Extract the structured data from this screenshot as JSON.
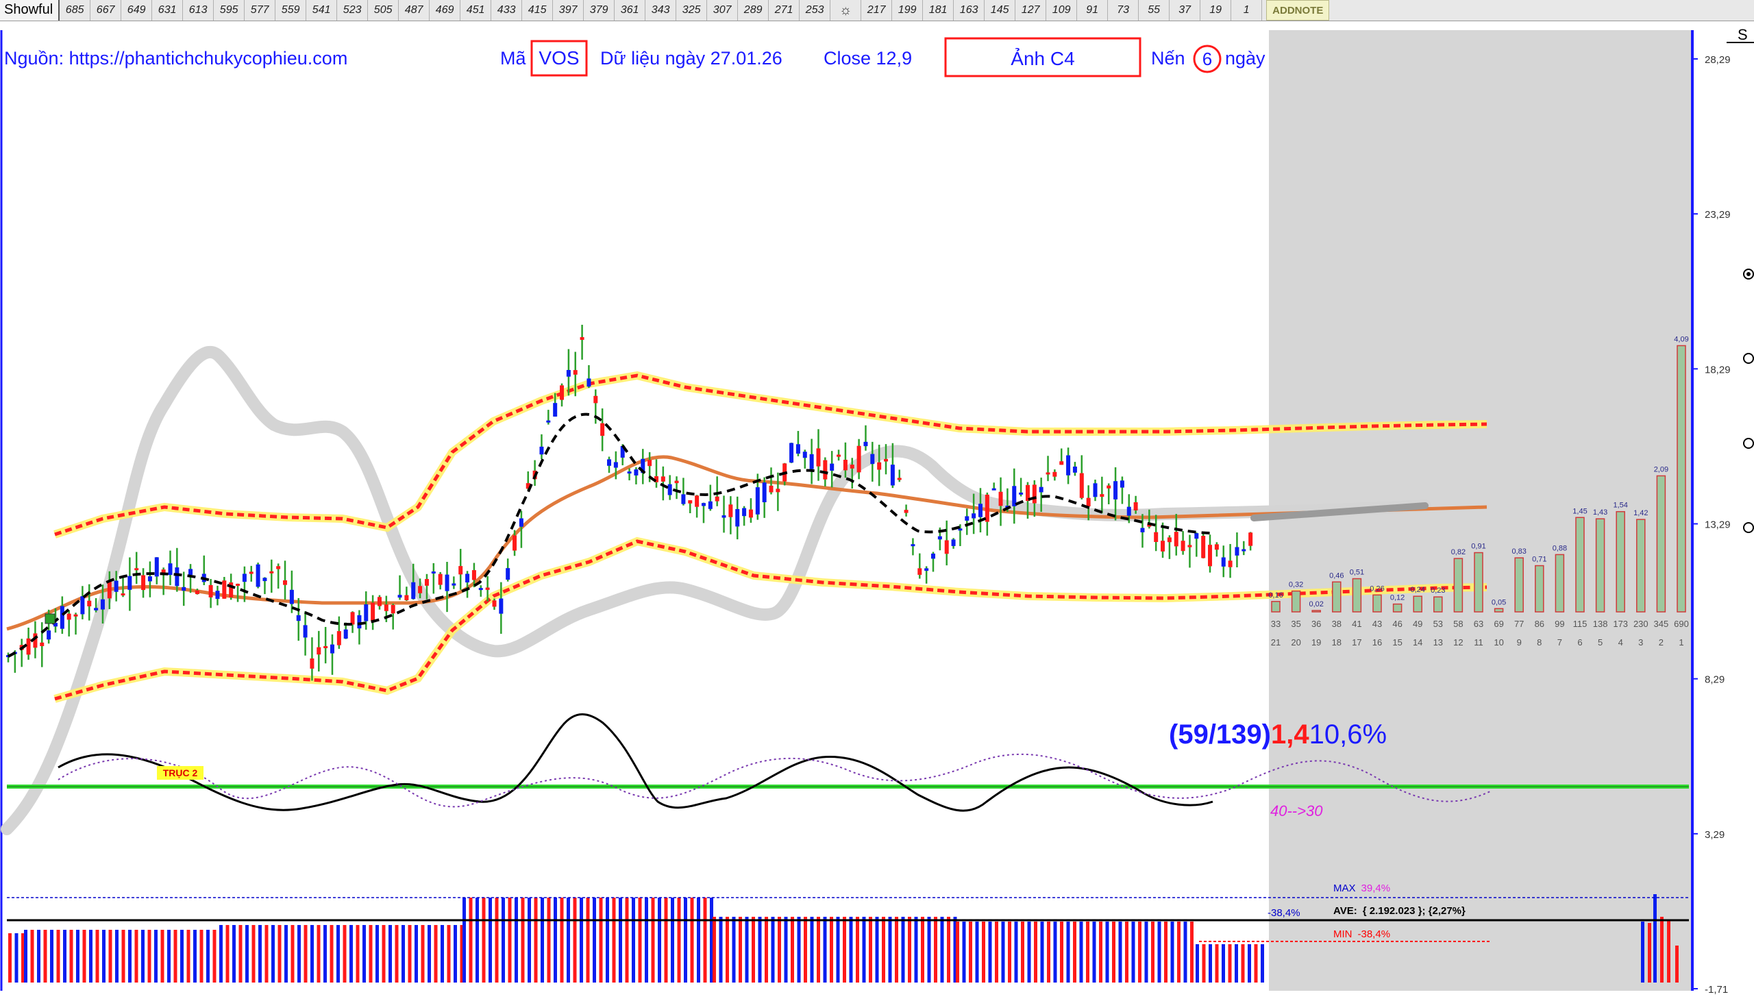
{
  "toolbar": {
    "app_label": "Showful",
    "period_buttons": [
      "685",
      "667",
      "649",
      "631",
      "613",
      "595",
      "577",
      "559",
      "541",
      "523",
      "505",
      "487",
      "469",
      "451",
      "433",
      "415",
      "397",
      "379",
      "361",
      "343",
      "325",
      "307",
      "289",
      "271",
      "253"
    ],
    "period_buttons_after": [
      "217",
      "199",
      "181",
      "163",
      "145",
      "127",
      "109",
      "91",
      "73",
      "55",
      "37",
      "19",
      "1"
    ],
    "addnote_label": "ADDNOTE",
    "settings_icon": "gear-icon"
  },
  "header": {
    "source": "Nguồn: https://phantichchukycophieu.com",
    "ticker_prefix": "Mã",
    "ticker": "VOS",
    "data_date": "Dữ liệu ngày 27.01.26",
    "close": "Close 12,9",
    "image_label": "Ảnh C4",
    "candle_prefix": "Nến",
    "candle_count": "6",
    "candle_suffix": "ngày",
    "corner_letter": "S"
  },
  "stats": {
    "ratio": "(59/139)",
    "value_red": "1,4",
    "value_blue": "10,6%",
    "cycle_note": "40-->30",
    "axis2_label": "TRỤC 2"
  },
  "bottom_panel": {
    "max_label": "MAX",
    "max_value": "39,4%",
    "ave_label": "AVE:",
    "ave_value": "{ 2.192.023 }; {2,27%}",
    "min_label": "MIN",
    "min_value": "-38,4%",
    "left_value": "-38,4%"
  },
  "colors": {
    "up": "#2ca02c",
    "down": "#ff1a1a",
    "blue": "#0a1ef0",
    "orange": "#e07a3c",
    "band": "#ff2020",
    "band_glow": "#ffef6a",
    "gray_shade": "#d6d6d6",
    "green_line": "#33dd33",
    "histogram_bar": "#9dc79d"
  },
  "chart_data": {
    "type": "candlestick",
    "y_axis_ticks": [
      "28,29",
      "23,29",
      "18,29",
      "13,29",
      "8,29",
      "3,29",
      "-1,71"
    ],
    "ylim": [
      -1.71,
      28.29
    ],
    "price_path_anchors": [
      {
        "i": 0,
        "p": 9.0
      },
      {
        "i": 10,
        "p": 10.5
      },
      {
        "i": 22,
        "p": 11.8
      },
      {
        "i": 32,
        "p": 11.2
      },
      {
        "i": 40,
        "p": 11.9
      },
      {
        "i": 45,
        "p": 9.0
      },
      {
        "i": 52,
        "p": 10.2
      },
      {
        "i": 60,
        "p": 11.2
      },
      {
        "i": 68,
        "p": 11.6
      },
      {
        "i": 73,
        "p": 10.5
      },
      {
        "i": 76,
        "p": 13.6
      },
      {
        "i": 81,
        "p": 17.2
      },
      {
        "i": 85,
        "p": 19.0
      },
      {
        "i": 89,
        "p": 15.6
      },
      {
        "i": 95,
        "p": 15.0
      },
      {
        "i": 102,
        "p": 14.0
      },
      {
        "i": 108,
        "p": 13.5
      },
      {
        "i": 113,
        "p": 14.4
      },
      {
        "i": 117,
        "p": 15.8
      },
      {
        "i": 122,
        "p": 15.0
      },
      {
        "i": 127,
        "p": 15.5
      },
      {
        "i": 132,
        "p": 14.8
      },
      {
        "i": 135,
        "p": 12.0
      },
      {
        "i": 140,
        "p": 12.8
      },
      {
        "i": 146,
        "p": 14.0
      },
      {
        "i": 152,
        "p": 14.4
      },
      {
        "i": 156,
        "p": 15.4
      },
      {
        "i": 160,
        "p": 14.2
      },
      {
        "i": 165,
        "p": 14.3
      },
      {
        "i": 170,
        "p": 12.7
      },
      {
        "i": 176,
        "p": 12.6
      },
      {
        "i": 180,
        "p": 12.1
      },
      {
        "i": 184,
        "p": 12.9
      }
    ],
    "volume_histogram": {
      "categories": [
        "33",
        "35",
        "36",
        "38",
        "41",
        "43",
        "46",
        "49",
        "53",
        "58",
        "63",
        "69",
        "77",
        "86",
        "99",
        "115",
        "138",
        "173",
        "230",
        "345",
        "690"
      ],
      "sub_labels": [
        "21",
        "20",
        "19",
        "18",
        "17",
        "16",
        "15",
        "14",
        "13",
        "12",
        "11",
        "10",
        "9",
        "8",
        "7",
        "6",
        "5",
        "4",
        "3",
        "2",
        "1"
      ],
      "values": [
        0.16,
        0.32,
        0.02,
        0.46,
        0.51,
        0.26,
        0.12,
        0.24,
        0.23,
        0.82,
        0.91,
        0.05,
        0.83,
        0.71,
        0.88,
        1.45,
        1.43,
        1.54,
        1.42,
        2.09,
        4.09
      ],
      "value_labels": [
        "0,16",
        "0,32",
        "0,02",
        "0,46",
        "0,51",
        "0,26",
        "0,12",
        "0,24",
        "0,23",
        "0,82",
        "0,91",
        "0,05",
        "0,83",
        "0,71",
        "0,88",
        "1,45",
        "1,43",
        "1,54",
        "1,42",
        "2,09",
        "4,09"
      ]
    },
    "bottom_percent": {
      "max": 39.4,
      "min": -38.4,
      "ave_percent": 2.27
    }
  }
}
